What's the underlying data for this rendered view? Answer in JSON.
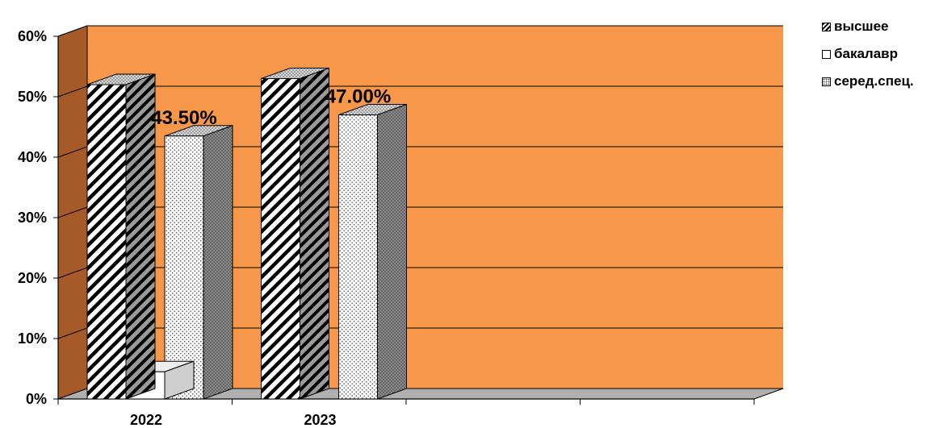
{
  "chart_data": {
    "type": "bar",
    "categories": [
      "2022",
      "2023"
    ],
    "series": [
      {
        "name": "высшее",
        "values": [
          0.52,
          0.53
        ]
      },
      {
        "name": "бакалавр",
        "values": [
          0.045,
          0
        ]
      },
      {
        "name": "серед.спец.",
        "values": [
          0.435,
          0.47
        ]
      }
    ],
    "data_labels": [
      "43.50%",
      "47.00%"
    ],
    "y_ticks": [
      "0%",
      "10%",
      "20%",
      "30%",
      "40%",
      "50%",
      "60%"
    ],
    "ylim": [
      0,
      0.6
    ],
    "grid": true,
    "legend_position": "top-right",
    "colors": {
      "plot_area": "#F7974A",
      "side_wall": "#A55A28",
      "floor": "#B0B0B0"
    }
  }
}
